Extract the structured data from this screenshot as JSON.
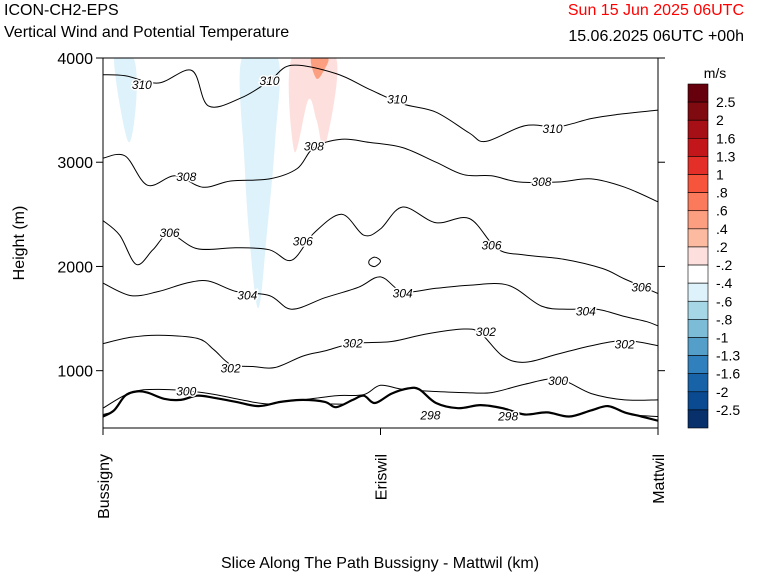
{
  "header": {
    "model": "ICON-CH2-EPS",
    "subtitle": "Vertical Wind and Potential Temperature",
    "valid_time": "Sun 15 Jun 2025 06UTC",
    "run_time": "15.06.2025 06UTC +00h",
    "valid_color": "#ff0000"
  },
  "chart_data": {
    "type": "cross-section",
    "xlabel": "Slice Along The Path Bussigny - Mattwil (km)",
    "ylabel": "Height (m)",
    "ylim": [
      450,
      4000
    ],
    "xlim": [
      0,
      100
    ],
    "y_ticks": [
      1000,
      2000,
      3000,
      4000
    ],
    "y_tick_labels": [
      "1000",
      "2000",
      "3000",
      "4000"
    ],
    "x_ticks": [
      0,
      50,
      100
    ],
    "x_tick_labels": [
      "Bussigny",
      "Eriswil",
      "Mattwil"
    ],
    "grid": false,
    "terrain": [
      [
        0,
        560
      ],
      [
        2,
        620
      ],
      [
        4,
        760
      ],
      [
        6,
        800
      ],
      [
        8,
        790
      ],
      [
        11,
        730
      ],
      [
        14,
        720
      ],
      [
        17,
        760
      ],
      [
        20,
        740
      ],
      [
        24,
        700
      ],
      [
        28,
        660
      ],
      [
        32,
        700
      ],
      [
        36,
        720
      ],
      [
        40,
        700
      ],
      [
        42,
        650
      ],
      [
        45,
        720
      ],
      [
        47,
        760
      ],
      [
        49,
        690
      ],
      [
        52,
        780
      ],
      [
        55,
        830
      ],
      [
        57,
        820
      ],
      [
        60,
        690
      ],
      [
        64,
        640
      ],
      [
        68,
        670
      ],
      [
        72,
        640
      ],
      [
        76,
        580
      ],
      [
        80,
        600
      ],
      [
        84,
        560
      ],
      [
        88,
        620
      ],
      [
        91,
        660
      ],
      [
        94,
        600
      ],
      [
        97,
        560
      ],
      [
        100,
        520
      ]
    ],
    "contours": [
      {
        "level": 298,
        "label": "298",
        "label_at": [
          [
            59,
            570
          ],
          [
            73,
            560
          ]
        ],
        "points": [
          [
            0,
            580
          ],
          [
            5,
            640
          ],
          [
            12,
            700
          ],
          [
            20,
            690
          ],
          [
            30,
            650
          ],
          [
            40,
            680
          ],
          [
            48,
            670
          ],
          [
            54,
            650
          ],
          [
            58,
            620
          ],
          [
            63,
            570
          ],
          [
            68,
            560
          ],
          [
            72,
            540
          ],
          [
            78,
            530
          ],
          [
            85,
            560
          ],
          [
            92,
            580
          ],
          [
            100,
            560
          ]
        ]
      },
      {
        "level": 300,
        "label": "300",
        "label_at": [
          [
            15,
            800
          ],
          [
            82,
            900
          ]
        ],
        "points": [
          [
            0,
            640
          ],
          [
            5,
            790
          ],
          [
            10,
            820
          ],
          [
            18,
            790
          ],
          [
            25,
            720
          ],
          [
            30,
            680
          ],
          [
            36,
            720
          ],
          [
            42,
            760
          ],
          [
            47,
            770
          ],
          [
            50,
            860
          ],
          [
            54,
            820
          ],
          [
            60,
            800
          ],
          [
            65,
            790
          ],
          [
            70,
            790
          ],
          [
            76,
            870
          ],
          [
            82,
            920
          ],
          [
            88,
            780
          ],
          [
            94,
            720
          ],
          [
            100,
            720
          ]
        ]
      },
      {
        "level": 302,
        "label": "302",
        "label_at": [
          [
            23,
            1020
          ],
          [
            45,
            1260
          ],
          [
            69,
            1370
          ],
          [
            94,
            1250
          ]
        ],
        "points": [
          [
            0,
            1260
          ],
          [
            5,
            1320
          ],
          [
            10,
            1340
          ],
          [
            17,
            1310
          ],
          [
            20,
            1200
          ],
          [
            23,
            1060
          ],
          [
            27,
            1040
          ],
          [
            31,
            1030
          ],
          [
            36,
            1140
          ],
          [
            40,
            1190
          ],
          [
            45,
            1260
          ],
          [
            52,
            1280
          ],
          [
            58,
            1350
          ],
          [
            65,
            1400
          ],
          [
            68,
            1360
          ],
          [
            72,
            1140
          ],
          [
            76,
            1080
          ],
          [
            82,
            1160
          ],
          [
            88,
            1240
          ],
          [
            94,
            1290
          ],
          [
            100,
            1240
          ]
        ]
      },
      {
        "level": 304,
        "label": "304",
        "label_at": [
          [
            26,
            1720
          ],
          [
            54,
            1740
          ],
          [
            87,
            1570
          ]
        ],
        "points": [
          [
            0,
            1840
          ],
          [
            5,
            1720
          ],
          [
            10,
            1760
          ],
          [
            15,
            1840
          ],
          [
            19,
            1860
          ],
          [
            24,
            1760
          ],
          [
            30,
            1720
          ],
          [
            34,
            1590
          ],
          [
            40,
            1700
          ],
          [
            46,
            1800
          ],
          [
            50,
            1900
          ],
          [
            54,
            1760
          ],
          [
            60,
            1790
          ],
          [
            66,
            1820
          ],
          [
            73,
            1820
          ],
          [
            79,
            1620
          ],
          [
            84,
            1590
          ],
          [
            89,
            1590
          ],
          [
            94,
            1520
          ],
          [
            98,
            1470
          ],
          [
            100,
            1430
          ]
        ]
      },
      {
        "level": 306,
        "label": "306",
        "label_at": [
          [
            12,
            2320
          ],
          [
            36,
            2240
          ],
          [
            70,
            2200
          ],
          [
            97,
            1800
          ]
        ],
        "points": [
          [
            0,
            2440
          ],
          [
            3,
            2300
          ],
          [
            6,
            2020
          ],
          [
            9,
            2160
          ],
          [
            12,
            2310
          ],
          [
            17,
            2170
          ],
          [
            24,
            2180
          ],
          [
            30,
            2160
          ],
          [
            34,
            2060
          ],
          [
            38,
            2320
          ],
          [
            43,
            2500
          ],
          [
            47,
            2300
          ],
          [
            50,
            2360
          ],
          [
            54,
            2570
          ],
          [
            60,
            2420
          ],
          [
            66,
            2460
          ],
          [
            71,
            2170
          ],
          [
            76,
            2110
          ],
          [
            83,
            2070
          ],
          [
            90,
            1980
          ],
          [
            94,
            1880
          ],
          [
            100,
            1740
          ]
        ]
      },
      {
        "level": 308,
        "label": "308",
        "label_at": [
          [
            15,
            2860
          ],
          [
            38,
            3150
          ],
          [
            79,
            2810
          ]
        ],
        "points": [
          [
            0,
            3040
          ],
          [
            4,
            3060
          ],
          [
            8,
            2780
          ],
          [
            13,
            2870
          ],
          [
            18,
            2760
          ],
          [
            23,
            2820
          ],
          [
            30,
            2840
          ],
          [
            35,
            2940
          ],
          [
            38,
            3140
          ],
          [
            43,
            3220
          ],
          [
            48,
            3190
          ],
          [
            54,
            3140
          ],
          [
            60,
            3000
          ],
          [
            65,
            2880
          ],
          [
            70,
            2870
          ],
          [
            75,
            2810
          ],
          [
            82,
            2810
          ],
          [
            88,
            2840
          ],
          [
            94,
            2760
          ],
          [
            100,
            2620
          ]
        ]
      },
      {
        "level": 310,
        "label": "310",
        "label_at": [
          [
            7,
            3740
          ],
          [
            30,
            3780
          ],
          [
            53,
            3600
          ],
          [
            81,
            3320
          ]
        ],
        "points": [
          [
            0,
            3840
          ],
          [
            4,
            3830
          ],
          [
            10,
            3760
          ],
          [
            16,
            3880
          ],
          [
            19,
            3540
          ],
          [
            25,
            3620
          ],
          [
            30,
            3780
          ],
          [
            34,
            3930
          ],
          [
            42,
            3850
          ],
          [
            48,
            3700
          ],
          [
            54,
            3560
          ],
          [
            60,
            3480
          ],
          [
            66,
            3280
          ],
          [
            69,
            3200
          ],
          [
            76,
            3350
          ],
          [
            82,
            3340
          ],
          [
            88,
            3420
          ],
          [
            93,
            3460
          ],
          [
            100,
            3500
          ]
        ]
      }
    ],
    "closed_contours": [
      {
        "level": 304,
        "points": [
          [
            48,
            2060
          ],
          [
            49,
            2090
          ],
          [
            50,
            2050
          ],
          [
            49,
            2000
          ],
          [
            48,
            2020
          ]
        ]
      }
    ],
    "colorbar": {
      "unit": "m/s",
      "labels": [
        "2.5",
        "2",
        "1.6",
        "1.3",
        "1",
        ".8",
        ".6",
        ".4",
        ".2",
        "-.2",
        "-.4",
        "-.6",
        "-.8",
        "-1",
        "-1.3",
        "-1.6",
        "-2",
        "-2.5"
      ],
      "colors": [
        "#67000d",
        "#7f0a0f",
        "#a50f15",
        "#c2161b",
        "#e32f27",
        "#f6553c",
        "#fb7a5b",
        "#fc9e80",
        "#fcbba1",
        "#fde0dd",
        "#ffffff",
        "#ddf2fa",
        "#a6d7e6",
        "#7cbcd7",
        "#539fc9",
        "#3080bd",
        "#1863a8",
        "#0a4a90",
        "#08306b"
      ]
    },
    "shading": [
      {
        "class": "-.2",
        "color": "#ddf2fa",
        "points": [
          [
            2,
            4000
          ],
          [
            4.5,
            3200
          ],
          [
            6,
            3600
          ],
          [
            5.5,
            4000
          ]
        ]
      },
      {
        "class": "-.2",
        "color": "#ddf2fa",
        "points": [
          [
            25,
            4000
          ],
          [
            25.5,
            3000
          ],
          [
            26.5,
            2200
          ],
          [
            28,
            1600
          ],
          [
            29.5,
            2300
          ],
          [
            31,
            3200
          ],
          [
            31.5,
            4000
          ]
        ]
      },
      {
        "class": ".2",
        "color": "#fde0dd",
        "points": [
          [
            34,
            4000
          ],
          [
            34.5,
            3100
          ],
          [
            37,
            3600
          ],
          [
            38.5,
            3400
          ],
          [
            40,
            3150
          ],
          [
            42,
            4000
          ]
        ]
      },
      {
        "class": ".4",
        "color": "#fc9e80",
        "points": [
          [
            37.5,
            4000
          ],
          [
            38.5,
            3800
          ],
          [
            40,
            3900
          ],
          [
            40.5,
            4000
          ]
        ]
      }
    ]
  }
}
